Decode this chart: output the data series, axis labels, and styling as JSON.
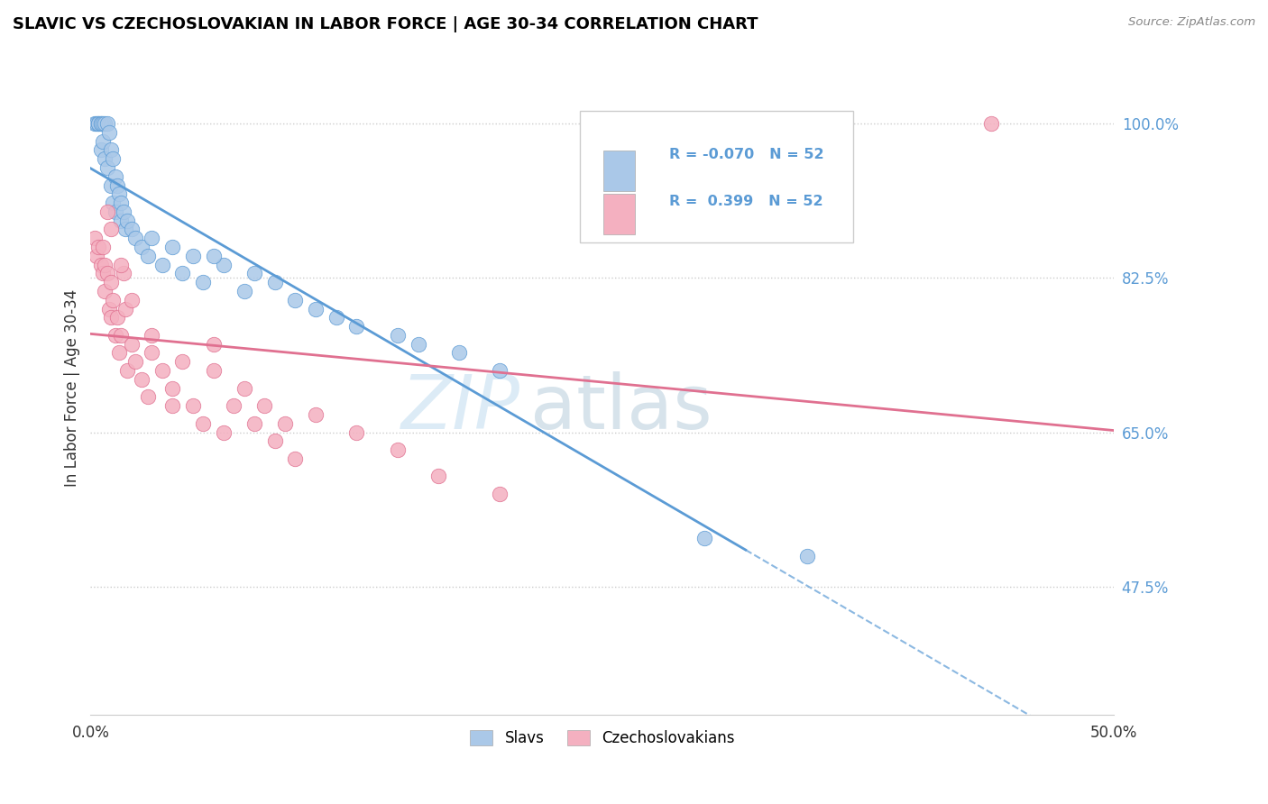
{
  "title": "SLAVIC VS CZECHOSLOVAKIAN IN LABOR FORCE | AGE 30-34 CORRELATION CHART",
  "source": "Source: ZipAtlas.com",
  "ylabel": "In Labor Force | Age 30-34",
  "x_min": 0.0,
  "x_max": 0.5,
  "y_min": 0.33,
  "y_max": 1.07,
  "x_tick_positions": [
    0.0,
    0.5
  ],
  "x_tick_labels": [
    "0.0%",
    "50.0%"
  ],
  "y_tick_vals_right": [
    0.475,
    0.65,
    0.825,
    1.0
  ],
  "y_tick_labels_right": [
    "47.5%",
    "65.0%",
    "82.5%",
    "100.0%"
  ],
  "legend_r_blue": "-0.070",
  "legend_n_blue": "52",
  "legend_r_pink": "0.399",
  "legend_n_pink": "52",
  "blue_fill": "#aac8e8",
  "blue_edge": "#5b9bd5",
  "pink_fill": "#f4b0c0",
  "pink_edge": "#e07090",
  "blue_line_color": "#5b9bd5",
  "pink_line_color": "#e07090",
  "watermark_zip_color": "#c8dff0",
  "watermark_atlas_color": "#b0c8e0",
  "slavs_x": [
    0.002,
    0.003,
    0.004,
    0.004,
    0.005,
    0.005,
    0.005,
    0.006,
    0.006,
    0.007,
    0.007,
    0.008,
    0.008,
    0.009,
    0.01,
    0.01,
    0.011,
    0.011,
    0.012,
    0.012,
    0.013,
    0.014,
    0.015,
    0.015,
    0.016,
    0.017,
    0.018,
    0.02,
    0.022,
    0.025,
    0.028,
    0.03,
    0.035,
    0.04,
    0.045,
    0.05,
    0.055,
    0.065,
    0.075,
    0.09,
    0.1,
    0.11,
    0.12,
    0.15,
    0.18,
    0.2,
    0.08,
    0.06,
    0.13,
    0.16,
    0.3,
    0.35
  ],
  "slavs_y": [
    1.0,
    1.0,
    1.0,
    1.0,
    1.0,
    1.0,
    0.97,
    1.0,
    0.98,
    1.0,
    0.96,
    1.0,
    0.95,
    0.99,
    0.97,
    0.93,
    0.96,
    0.91,
    0.94,
    0.9,
    0.93,
    0.92,
    0.91,
    0.89,
    0.9,
    0.88,
    0.89,
    0.88,
    0.87,
    0.86,
    0.85,
    0.87,
    0.84,
    0.86,
    0.83,
    0.85,
    0.82,
    0.84,
    0.81,
    0.82,
    0.8,
    0.79,
    0.78,
    0.76,
    0.74,
    0.72,
    0.83,
    0.85,
    0.77,
    0.75,
    0.53,
    0.51
  ],
  "czech_x": [
    0.002,
    0.003,
    0.004,
    0.005,
    0.006,
    0.006,
    0.007,
    0.007,
    0.008,
    0.009,
    0.01,
    0.01,
    0.011,
    0.012,
    0.013,
    0.014,
    0.015,
    0.016,
    0.017,
    0.018,
    0.02,
    0.022,
    0.025,
    0.028,
    0.03,
    0.035,
    0.04,
    0.045,
    0.05,
    0.055,
    0.06,
    0.065,
    0.07,
    0.08,
    0.09,
    0.1,
    0.11,
    0.13,
    0.15,
    0.06,
    0.075,
    0.085,
    0.095,
    0.04,
    0.03,
    0.02,
    0.015,
    0.01,
    0.008,
    0.17,
    0.2,
    0.44
  ],
  "czech_y": [
    0.87,
    0.85,
    0.86,
    0.84,
    0.86,
    0.83,
    0.84,
    0.81,
    0.83,
    0.79,
    0.82,
    0.78,
    0.8,
    0.76,
    0.78,
    0.74,
    0.76,
    0.83,
    0.79,
    0.72,
    0.75,
    0.73,
    0.71,
    0.69,
    0.74,
    0.72,
    0.7,
    0.73,
    0.68,
    0.66,
    0.75,
    0.65,
    0.68,
    0.66,
    0.64,
    0.62,
    0.67,
    0.65,
    0.63,
    0.72,
    0.7,
    0.68,
    0.66,
    0.68,
    0.76,
    0.8,
    0.84,
    0.88,
    0.9,
    0.6,
    0.58,
    1.0
  ]
}
